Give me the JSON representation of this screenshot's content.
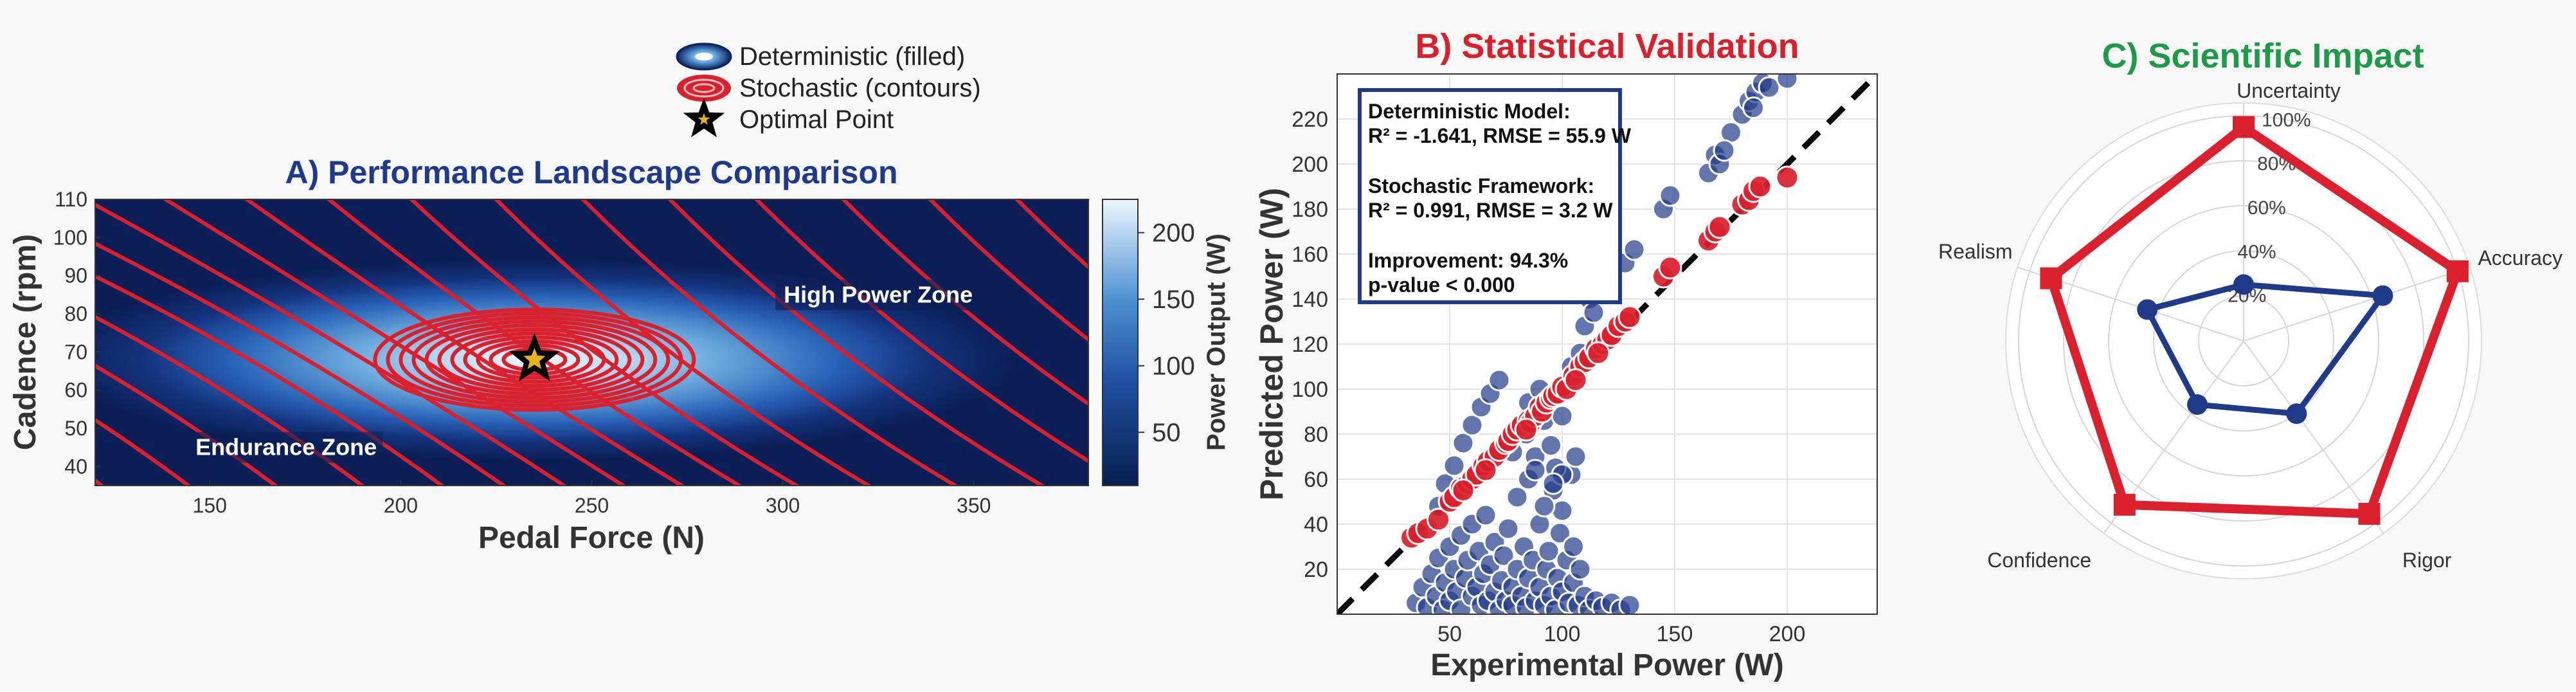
{
  "figure": {
    "background": "#f8f8f8"
  },
  "chart_data": [
    {
      "id": "A",
      "type": "heatmap",
      "title": "A) Performance Landscape Comparison",
      "title_color": "#1f3a8a",
      "xlabel": "Pedal Force (N)",
      "ylabel": "Cadence (rpm)",
      "xlim": [
        120,
        380
      ],
      "ylim": [
        35,
        110
      ],
      "xticks": [
        150,
        200,
        250,
        300,
        350
      ],
      "yticks": [
        40,
        50,
        60,
        70,
        80,
        90,
        100,
        110
      ],
      "colorbar": {
        "label": "Power Output (W)",
        "ticks": [
          50,
          100,
          150,
          200
        ],
        "range": [
          10,
          225
        ]
      },
      "deterministic_peak": {
        "force": 235,
        "cadence": 68,
        "power": 225,
        "sigma_force": 55,
        "sigma_cadence": 12
      },
      "stochastic_contour_color": "#d9202c",
      "annotations": [
        {
          "text": "High Power Zone",
          "force": 325,
          "cadence": 85
        },
        {
          "text": "Endurance Zone",
          "force": 170,
          "cadence": 45
        }
      ],
      "optimal_point": {
        "force": 235,
        "cadence": 68
      },
      "legend": {
        "position": "top",
        "entries": [
          {
            "label": "Deterministic (filled)",
            "kind": "filled"
          },
          {
            "label": "Stochastic (contours)",
            "kind": "contours"
          },
          {
            "label": "Optimal Point",
            "kind": "star"
          }
        ]
      }
    },
    {
      "id": "B",
      "type": "scatter",
      "title": "B) Statistical Validation",
      "title_color": "#d9202c",
      "xlabel": "Experimental Power (W)",
      "ylabel": "Predicted Power (W)",
      "xlim": [
        0,
        240
      ],
      "ylim": [
        0,
        240
      ],
      "xticks": [
        50,
        100,
        150,
        200
      ],
      "yticks": [
        20,
        40,
        60,
        80,
        100,
        120,
        140,
        160,
        180,
        200,
        220
      ],
      "annotation_lines": [
        "Deterministic Model:",
        "R² = -1.641, RMSE = 55.9 W",
        "",
        "Stochastic Framework:",
        "R² = 0.991, RMSE = 3.2 W",
        "",
        "Improvement: 94.3%",
        "p-value < 0.000"
      ],
      "series": [
        {
          "name": "Deterministic",
          "color": "#1f3a8a",
          "points": [
            [
              35,
              5
            ],
            [
              38,
              12
            ],
            [
              40,
              3
            ],
            [
              42,
              18
            ],
            [
              44,
              8
            ],
            [
              45,
              25
            ],
            [
              47,
              2
            ],
            [
              48,
              14
            ],
            [
              50,
              30
            ],
            [
              50,
              6
            ],
            [
              52,
              20
            ],
            [
              53,
              10
            ],
            [
              55,
              35
            ],
            [
              55,
              2
            ],
            [
              57,
              16
            ],
            [
              58,
              24
            ],
            [
              60,
              8
            ],
            [
              60,
              40
            ],
            [
              62,
              12
            ],
            [
              63,
              28
            ],
            [
              64,
              4
            ],
            [
              65,
              18
            ],
            [
              66,
              44
            ],
            [
              67,
              6
            ],
            [
              68,
              22
            ],
            [
              70,
              10
            ],
            [
              70,
              32
            ],
            [
              72,
              2
            ],
            [
              73,
              15
            ],
            [
              74,
              26
            ],
            [
              75,
              6
            ],
            [
              76,
              38
            ],
            [
              78,
              12
            ],
            [
              78,
              4
            ],
            [
              80,
              20
            ],
            [
              80,
              52
            ],
            [
              82,
              8
            ],
            [
              83,
              30
            ],
            [
              84,
              3
            ],
            [
              85,
              16
            ],
            [
              85,
              60
            ],
            [
              87,
              24
            ],
            [
              88,
              6
            ],
            [
              88,
              70
            ],
            [
              90,
              12
            ],
            [
              90,
              40
            ],
            [
              92,
              4
            ],
            [
              92,
              86
            ],
            [
              93,
              20
            ],
            [
              94,
              28
            ],
            [
              95,
              8
            ],
            [
              95,
              96
            ],
            [
              96,
              55
            ],
            [
              97,
              2
            ],
            [
              98,
              16
            ],
            [
              99,
              36
            ],
            [
              100,
              10
            ],
            [
              100,
              46
            ],
            [
              102,
              24
            ],
            [
              103,
              5
            ],
            [
              104,
              62
            ],
            [
              105,
              14
            ],
            [
              105,
              30
            ],
            [
              107,
              4
            ],
            [
              108,
              20
            ],
            [
              110,
              8
            ],
            [
              112,
              2
            ],
            [
              115,
              6
            ],
            [
              118,
              3
            ],
            [
              122,
              5
            ],
            [
              126,
              2
            ],
            [
              130,
              4
            ],
            [
              45,
              48
            ],
            [
              48,
              58
            ],
            [
              52,
              66
            ],
            [
              56,
              76
            ],
            [
              60,
              84
            ],
            [
              64,
              92
            ],
            [
              68,
              98
            ],
            [
              72,
              104
            ],
            [
              85,
              94
            ],
            [
              90,
              100
            ],
            [
              92,
              48
            ],
            [
              95,
              75
            ],
            [
              97,
              65
            ],
            [
              100,
              88
            ],
            [
              104,
              110
            ],
            [
              108,
              116
            ],
            [
              110,
              128
            ],
            [
              112,
              140
            ],
            [
              114,
              134
            ],
            [
              118,
              150
            ],
            [
              122,
              146
            ],
            [
              128,
              156
            ],
            [
              132,
              162
            ],
            [
              145,
              180
            ],
            [
              148,
              186
            ],
            [
              165,
              196
            ],
            [
              168,
              204
            ],
            [
              170,
              200
            ],
            [
              175,
              214
            ],
            [
              180,
              222
            ],
            [
              183,
              228
            ],
            [
              186,
              232
            ],
            [
              189,
              236
            ],
            [
              192,
              234
            ],
            [
              200,
              238
            ],
            [
              185,
              225
            ],
            [
              172,
              206
            ],
            [
              100,
              62
            ],
            [
              106,
              70
            ],
            [
              96,
              58
            ],
            [
              88,
              64
            ],
            [
              84,
              80
            ],
            [
              78,
              72
            ]
          ]
        },
        {
          "name": "Stochastic",
          "color": "#d9202c",
          "points": [
            [
              33,
              34
            ],
            [
              36,
              36
            ],
            [
              40,
              38
            ],
            [
              45,
              42
            ],
            [
              50,
              50
            ],
            [
              52,
              52
            ],
            [
              55,
              56
            ],
            [
              58,
              58
            ],
            [
              60,
              60
            ],
            [
              62,
              62
            ],
            [
              65,
              66
            ],
            [
              67,
              68
            ],
            [
              70,
              70
            ],
            [
              72,
              73
            ],
            [
              75,
              76
            ],
            [
              76,
              77
            ],
            [
              78,
              80
            ],
            [
              80,
              82
            ],
            [
              82,
              84
            ],
            [
              85,
              86
            ],
            [
              86,
              85
            ],
            [
              88,
              88
            ],
            [
              90,
              92
            ],
            [
              91,
              90
            ],
            [
              93,
              94
            ],
            [
              95,
              96
            ],
            [
              96,
              97
            ],
            [
              98,
              98
            ],
            [
              100,
              101
            ],
            [
              102,
              100
            ],
            [
              105,
              106
            ],
            [
              108,
              110
            ],
            [
              110,
              112
            ],
            [
              112,
              114
            ],
            [
              115,
              118
            ],
            [
              118,
              120
            ],
            [
              120,
              122
            ],
            [
              122,
              124
            ],
            [
              125,
              128
            ],
            [
              128,
              130
            ],
            [
              130,
              132
            ],
            [
              145,
              150
            ],
            [
              148,
              154
            ],
            [
              165,
              166
            ],
            [
              168,
              170
            ],
            [
              170,
              172
            ],
            [
              180,
              182
            ],
            [
              183,
              184
            ],
            [
              185,
              188
            ],
            [
              188,
              190
            ],
            [
              200,
              194
            ],
            [
              56,
              55
            ],
            [
              66,
              64
            ],
            [
              84,
              82
            ],
            [
              106,
              104
            ],
            [
              116,
              116
            ]
          ]
        }
      ]
    },
    {
      "id": "C",
      "type": "radar",
      "title": "C) Scientific Impact",
      "title_color": "#1f9a4a",
      "axes": [
        "Uncertainty",
        "Accuracy",
        "Rigor",
        "Confidence",
        "Realism"
      ],
      "rticks": [
        "20%",
        "40%",
        "60%",
        "80%",
        "100%"
      ],
      "series": [
        {
          "name": "Stochastic",
          "color": "#d9202c",
          "values": [
            95,
            100,
            95,
            90,
            90
          ]
        },
        {
          "name": "Deterministic",
          "color": "#1f3a8a",
          "values": [
            25,
            65,
            40,
            35,
            45
          ]
        }
      ]
    }
  ]
}
